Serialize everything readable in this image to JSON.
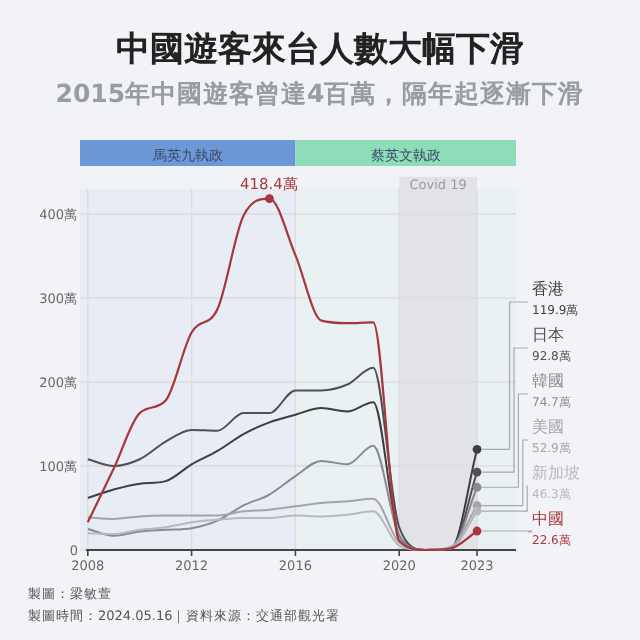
{
  "chart_data": {
    "type": "line",
    "title": "中國遊客來台人數大幅下滑",
    "subtitle": "2015年中國遊客曾達4百萬，隔年起逐漸下滑",
    "x": [
      2008,
      2009,
      2010,
      2011,
      2012,
      2013,
      2014,
      2015,
      2016,
      2017,
      2018,
      2019,
      2020,
      2021,
      2022,
      2023
    ],
    "xlim": [
      2007.7,
      2024.5
    ],
    "xticks": [
      2008,
      2012,
      2016,
      2020,
      2023
    ],
    "ylim": [
      0,
      430
    ],
    "yticks": [
      {
        "value": 0,
        "label": "0"
      },
      {
        "value": 100,
        "label": "100萬"
      },
      {
        "value": 200,
        "label": "200萬"
      },
      {
        "value": 300,
        "label": "300萬"
      },
      {
        "value": 400,
        "label": "400萬"
      }
    ],
    "grid": true,
    "legend": false,
    "series": [
      {
        "name": "香港",
        "color": "#3d3d42",
        "values": [
          62,
          72,
          79,
          82,
          102,
          118,
          138,
          152,
          161,
          169,
          165,
          176,
          17,
          0,
          2,
          119.9
        ],
        "value_labels": [
          null,
          null,
          null,
          null,
          null,
          null,
          null,
          null,
          null,
          null,
          null,
          null,
          null,
          null,
          null,
          "119.9萬"
        ]
      },
      {
        "name": "日本",
        "color": "#505057",
        "values": [
          108,
          100,
          108,
          129,
          143,
          142,
          163,
          163,
          190,
          190,
          197,
          217,
          27,
          0,
          1,
          92.8
        ],
        "value_labels": [
          null,
          null,
          null,
          null,
          null,
          null,
          null,
          null,
          null,
          null,
          null,
          null,
          null,
          null,
          null,
          "92.8萬"
        ]
      },
      {
        "name": "韓國",
        "color": "#8a8a90",
        "values": [
          25,
          17,
          22,
          24,
          26,
          35,
          53,
          66,
          88,
          106,
          102,
          124,
          17,
          0,
          2,
          74.7
        ],
        "value_labels": [
          null,
          null,
          null,
          null,
          null,
          null,
          null,
          null,
          null,
          null,
          null,
          null,
          null,
          null,
          null,
          "74.7萬"
        ]
      },
      {
        "name": "美國",
        "color": "#a4a4aa",
        "values": [
          39,
          37,
          40,
          41,
          41,
          41,
          46,
          48,
          52,
          56,
          58,
          61,
          9,
          0,
          4,
          52.9
        ],
        "value_labels": [
          null,
          null,
          null,
          null,
          null,
          null,
          null,
          null,
          null,
          null,
          null,
          null,
          null,
          null,
          null,
          "52.9萬"
        ]
      },
      {
        "name": "新加坡",
        "color": "#b8b8bd",
        "values": [
          20,
          19,
          24,
          27,
          33,
          36,
          38,
          38,
          41,
          40,
          42,
          46,
          5,
          0,
          2,
          46.3
        ],
        "value_labels": [
          null,
          null,
          null,
          null,
          null,
          null,
          null,
          null,
          null,
          null,
          null,
          null,
          null,
          null,
          null,
          "46.3萬"
        ]
      },
      {
        "name": "中國",
        "color": "#a8373d",
        "values": [
          33,
          97,
          163,
          178,
          259,
          287,
          398,
          418.4,
          351,
          273,
          270,
          271,
          11,
          0,
          2,
          22.6
        ],
        "value_labels": [
          null,
          null,
          null,
          null,
          null,
          null,
          null,
          "418.4萬",
          null,
          null,
          null,
          null,
          null,
          null,
          null,
          "22.6萬"
        ]
      }
    ],
    "bands": [
      {
        "axis": "x",
        "from": 2007.7,
        "to": 2016,
        "label": "馬英九執政",
        "color": "#6d98d8"
      },
      {
        "axis": "x",
        "from": 2016,
        "to": 2024.5,
        "label": "蔡英文執政",
        "color": "#8fdcb8"
      },
      {
        "axis": "x",
        "from": 2020,
        "to": 2023,
        "label": "Covid 19",
        "color": "#e2e3e8"
      }
    ],
    "annotations": [
      "製圖：梁敏萱",
      "製圖時間：2024.05.16｜資料來源：交通部觀光署"
    ]
  }
}
